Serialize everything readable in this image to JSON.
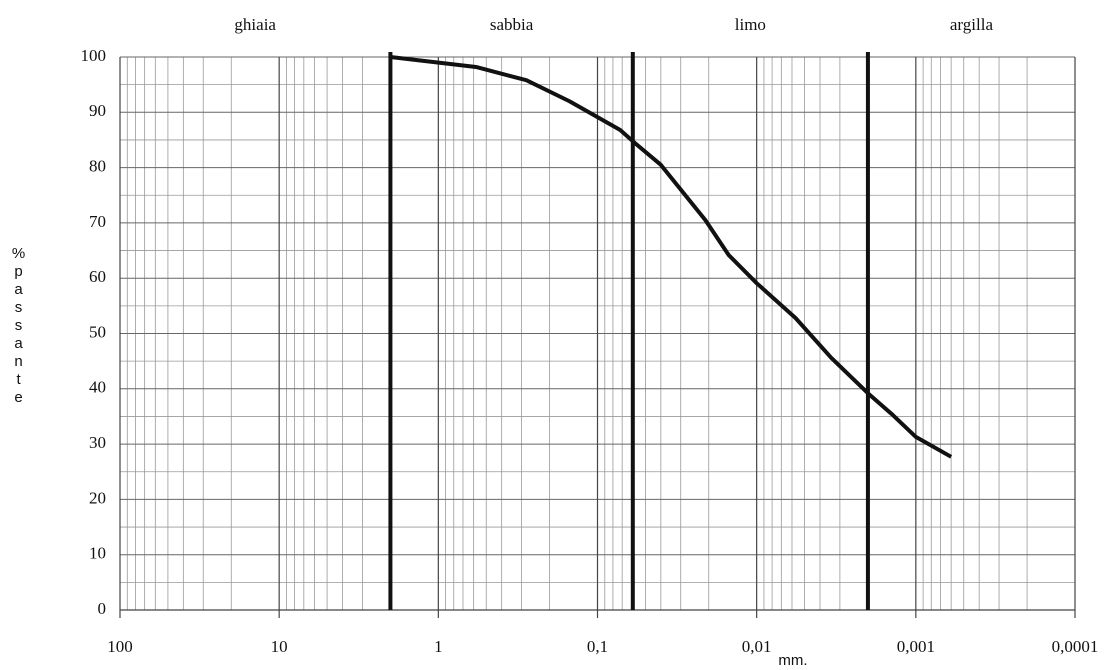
{
  "chart_data": {
    "type": "line",
    "zones": [
      "ghiaia",
      "sabbia",
      "limo",
      "argilla"
    ],
    "boundaries": [
      2,
      0.06,
      0.002
    ],
    "ylabel": "%passante",
    "xlabel": "mm.",
    "xscale": "log",
    "grid": true,
    "color": "#111111",
    "x": [
      2,
      0.58,
      0.28,
      0.15,
      0.072,
      0.058,
      0.04,
      0.021,
      0.015,
      0.01,
      0.0057,
      0.0034,
      0.002,
      0.0014,
      0.001,
      0.0006
    ],
    "values": [
      100,
      98.2,
      95.8,
      92,
      86.8,
      84.4,
      80.5,
      70.5,
      64.2,
      59.1,
      52.8,
      45.6,
      39.2,
      35.3,
      31.3,
      27.7
    ],
    "xlim": [
      100,
      0.0001
    ],
    "xticks": [
      100,
      10,
      1,
      {
        "value": 0.1,
        "label": "0,1"
      },
      {
        "value": 0.01,
        "label": "0,01"
      },
      {
        "value": 0.001,
        "label": "0,001"
      },
      {
        "value": 0.0001,
        "label": "0,0001"
      }
    ],
    "ylim": [
      0,
      100
    ],
    "yticks": [
      0,
      10,
      20,
      30,
      40,
      50,
      60,
      70,
      80,
      90,
      100
    ]
  }
}
